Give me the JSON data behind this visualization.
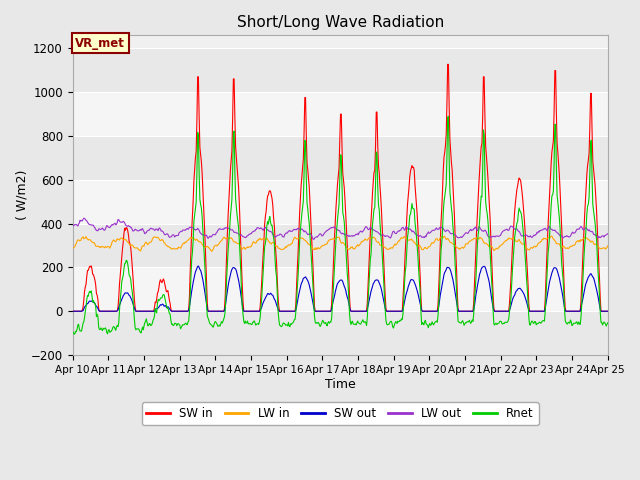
{
  "title": "Short/Long Wave Radiation",
  "xlabel": "Time",
  "ylabel": "( W/m2)",
  "ylim": [
    -200,
    1260
  ],
  "yticks": [
    -200,
    0,
    200,
    400,
    600,
    800,
    1000,
    1200
  ],
  "x_tick_labels": [
    "Apr 10",
    "Apr 11",
    "Apr 12",
    "Apr 13",
    "Apr 14",
    "Apr 15",
    "Apr 16",
    "Apr 17",
    "Apr 18",
    "Apr 19",
    "Apr 20",
    "Apr 21",
    "Apr 22",
    "Apr 23",
    "Apr 24",
    "Apr 25"
  ],
  "annotation_text": "VR_met",
  "annotation_bg": "#ffffcc",
  "annotation_border": "#8B0000",
  "colors": {
    "SW_in": "#ff0000",
    "LW_in": "#ffa500",
    "SW_out": "#0000cc",
    "LW_out": "#9932cc",
    "Rnet": "#00cc00"
  },
  "legend_labels": [
    "SW in",
    "LW in",
    "SW out",
    "LW out",
    "Rnet"
  ],
  "bg_color": "#e8e8e8",
  "plot_bg_light": "#f0f0f0",
  "plot_bg_dark": "#d8d8d8",
  "grid_color": "#ffffff",
  "linewidth": 0.8
}
